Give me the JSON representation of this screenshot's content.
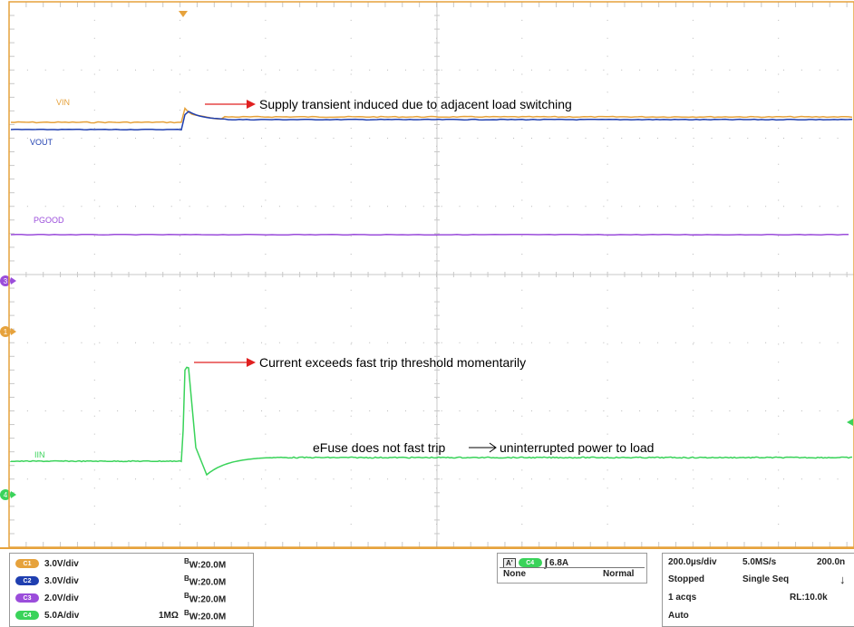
{
  "colors": {
    "vin": "#e6a23c",
    "vout": "#1f3fb0",
    "pgood": "#9b4ddb",
    "iin": "#3ad35a",
    "grid": "#b8b8b8",
    "frame": "#e6a23c",
    "arrow": "#e02020"
  },
  "traces": {
    "vin_label": "VIN",
    "vout_label": "VOUT",
    "pgood_label": "PGOOD",
    "iin_label": "IIN"
  },
  "markers": {
    "ch3": "3",
    "ch1": "1",
    "ch4": "4"
  },
  "annotations": {
    "supply": "Supply transient induced due to adjacent load switching",
    "current": "Current exceeds fast trip threshold momentarily",
    "efuse_left": "eFuse does not fast trip",
    "efuse_right": "uninterrupted power to load"
  },
  "channels": [
    {
      "badge": "C1",
      "scale": "3.0V/div",
      "coupling": "",
      "bw": "W:20.0M",
      "color": "#e6a23c"
    },
    {
      "badge": "C2",
      "scale": "3.0V/div",
      "coupling": "",
      "bw": "W:20.0M",
      "color": "#1f3fb0"
    },
    {
      "badge": "C3",
      "scale": "2.0V/div",
      "coupling": "",
      "bw": "W:20.0M",
      "color": "#9b4ddb"
    },
    {
      "badge": "C4",
      "scale": "5.0A/div",
      "coupling": "1MΩ",
      "bw": "W:20.0M",
      "color": "#3ad35a"
    }
  ],
  "bw_prefix": "B",
  "trigger": {
    "mode_badge": "A'",
    "channel_badge": "C4",
    "level": "6.8A",
    "source": "None",
    "type": "Normal"
  },
  "timebase": {
    "time_div": "200.0µs/div",
    "sample_rate": "5.0MS/s",
    "position": "200.0n",
    "state": "Stopped",
    "acq_mode": "Single Seq",
    "acqs": "1 acqs",
    "record_length": "RL:10.0k",
    "trigger_mode": "Auto"
  }
}
